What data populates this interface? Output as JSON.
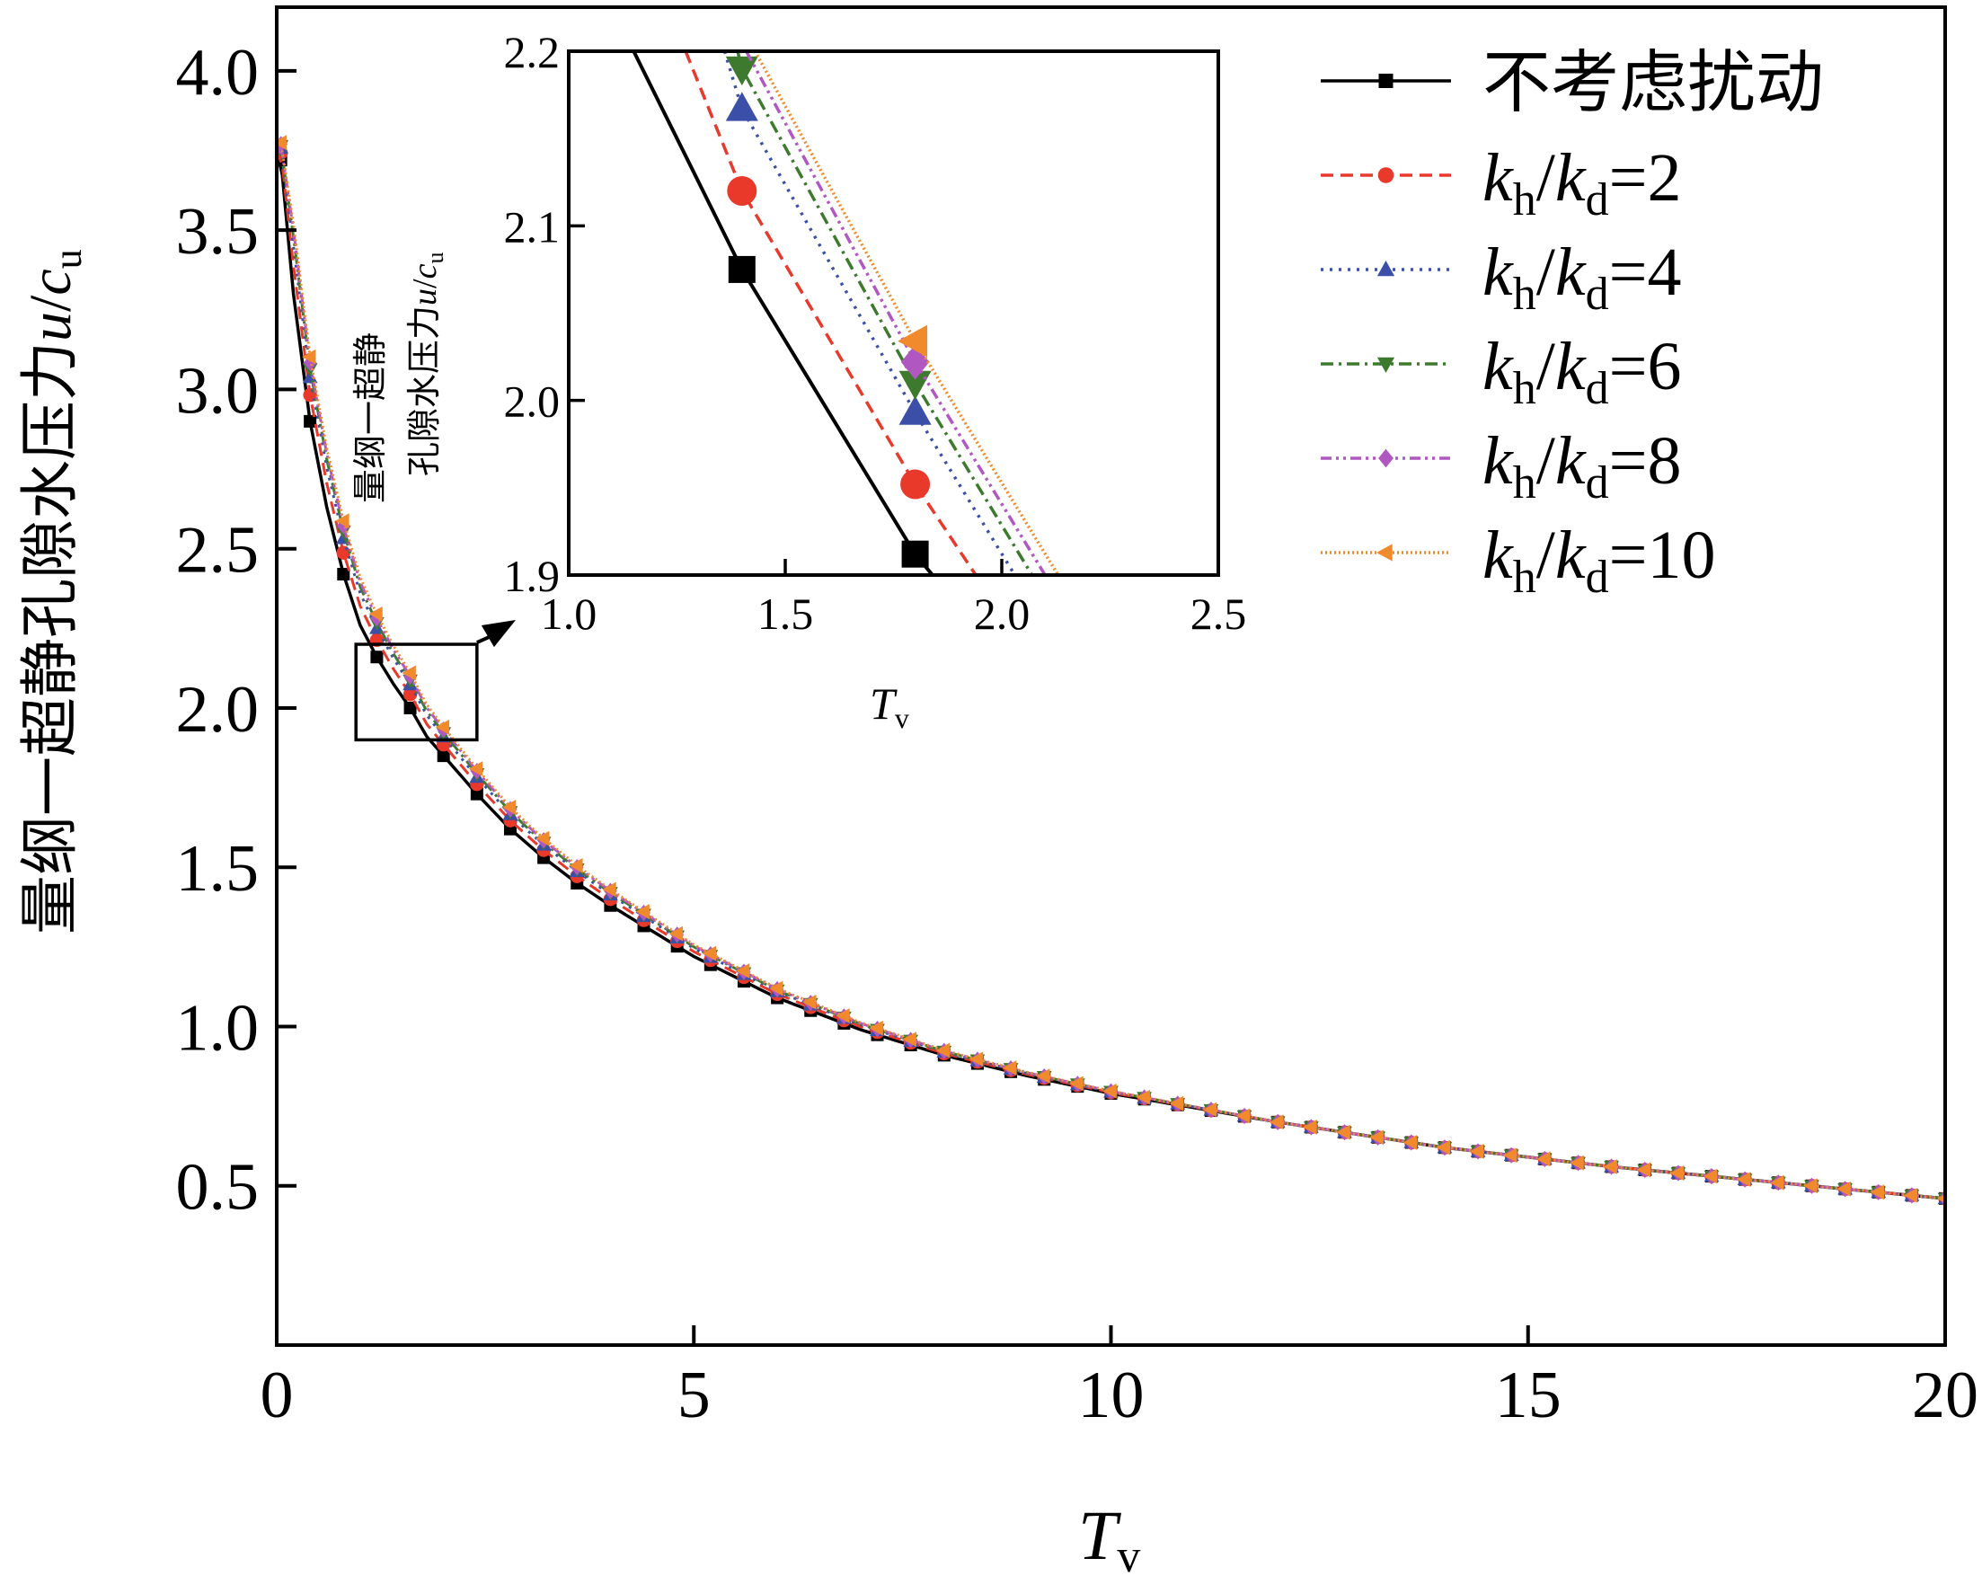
{
  "chart_data": {
    "main": {
      "type": "line",
      "ylabel": "量纲一超静孔隙水压力u/cu",
      "ylabel_parts": {
        "cn": "量纲一超静孔隙水压力",
        "var": "u",
        "slash": "/",
        "c": "c",
        "csub": "u"
      },
      "xlabel": "Tv",
      "xlabel_parts": {
        "var": "T",
        "sub": "v"
      },
      "xlim": [
        0,
        20
      ],
      "ylim": [
        0,
        4.2
      ],
      "xticks": [
        0,
        5,
        10,
        15,
        20
      ],
      "xtick_labels": [
        "0",
        "5",
        "10",
        "15",
        "20"
      ],
      "yticks": [
        0.5,
        1.0,
        1.5,
        2.0,
        2.5,
        3.0,
        3.5,
        4.0
      ],
      "ytick_labels": [
        "0.5",
        "1.0",
        "1.5",
        "2.0",
        "2.5",
        "3.0",
        "3.5",
        "4.0"
      ],
      "grid": false,
      "legend_position": "top-right",
      "zoom_box": {
        "x": [
          0.95,
          2.4
        ],
        "y": [
          1.9,
          2.2
        ]
      },
      "marker_x": [
        0.05,
        0.4,
        0.8,
        1.2,
        1.6,
        2.0,
        2.4,
        2.8,
        3.2,
        3.6,
        4.0,
        4.4,
        4.8,
        5.2,
        5.6,
        6.0,
        6.4,
        6.8,
        7.2,
        7.6,
        8.0,
        8.4,
        8.8,
        9.2,
        9.6,
        10.0,
        10.4,
        10.8,
        11.2,
        11.6,
        12.0,
        12.4,
        12.8,
        13.2,
        13.6,
        14.0,
        14.4,
        14.8,
        15.2,
        15.6,
        16.0,
        16.4,
        16.8,
        17.2,
        17.6,
        18.0,
        18.4,
        18.8,
        19.2,
        19.6,
        20.0
      ],
      "series": [
        {
          "name": "不考虑扰动",
          "label_parts": [
            "不考虑扰动"
          ],
          "color": "#000000",
          "dash": "",
          "marker": "square",
          "offset": [
            0,
            0,
            0,
            0,
            0,
            0,
            0,
            0,
            0
          ]
        },
        {
          "name": "kh/kd=2",
          "label_parts": [
            "k",
            "h",
            "/",
            "k",
            "d",
            "=2"
          ],
          "color": "#e8392b",
          "dash": "14,8",
          "marker": "circle",
          "offset": [
            0,
            0.09,
            0.06,
            0.047,
            0.035,
            0.025,
            0.015,
            0.006,
            0
          ]
        },
        {
          "name": "kh/kd=4",
          "label_parts": [
            "k",
            "h",
            "/",
            "k",
            "d",
            "=4"
          ],
          "color": "#3c4fa8",
          "dash": "3,7",
          "marker": "triangle-up",
          "offset": [
            0,
            0.15,
            0.1,
            0.08,
            0.06,
            0.042,
            0.025,
            0.01,
            0
          ]
        },
        {
          "name": "kh/kd=6",
          "label_parts": [
            "k",
            "h",
            "/",
            "k",
            "d",
            "=6"
          ],
          "color": "#3d7a2e",
          "dash": "14,6,3,6",
          "marker": "triangle-down",
          "offset": [
            0,
            0.18,
            0.12,
            0.095,
            0.072,
            0.05,
            0.03,
            0.012,
            0
          ]
        },
        {
          "name": "kh/kd=8",
          "label_parts": [
            "k",
            "h",
            "/",
            "k",
            "d",
            "=8"
          ],
          "color": "#b157c2",
          "dash": "12,5,3,5,3,5",
          "marker": "diamond",
          "offset": [
            0,
            0.2,
            0.135,
            0.108,
            0.082,
            0.057,
            0.034,
            0.013,
            0
          ]
        },
        {
          "name": "kh/kd=10",
          "label_parts": [
            "k",
            "h",
            "/",
            "k",
            "d",
            "=10"
          ],
          "color": "#f08a2c",
          "dash": "2,3",
          "marker": "triangle-left",
          "offset": [
            0,
            0.22,
            0.15,
            0.12,
            0.09,
            0.063,
            0.037,
            0.015,
            0
          ]
        }
      ],
      "base_curve": {
        "x": [
          0,
          0.05,
          0.2,
          0.4,
          0.6,
          0.8,
          1.0,
          1.2,
          1.4,
          1.6,
          1.8,
          2.0,
          2.4,
          2.8,
          3.2,
          3.6,
          4.0,
          5.0,
          6.0,
          7.0,
          8.0,
          9.0,
          10.0,
          12.0,
          14.0,
          16.0,
          18.0,
          20.0
        ],
        "y": [
          3.75,
          3.72,
          3.3,
          2.9,
          2.63,
          2.42,
          2.26,
          2.16,
          2.075,
          2.0,
          1.91,
          1.85,
          1.73,
          1.62,
          1.53,
          1.45,
          1.38,
          1.22,
          1.09,
          0.99,
          0.91,
          0.845,
          0.79,
          0.7,
          0.62,
          0.56,
          0.51,
          0.46
        ]
      },
      "offset_x": [
        0,
        0.2,
        1.0,
        1.4,
        2.0,
        3.0,
        5.0,
        8.0,
        12.0
      ]
    },
    "inset": {
      "type": "line",
      "ylabel_line1": "量纲一超静",
      "ylabel_line2_parts": {
        "cn": "孔隙水压力",
        "var": "u",
        "slash": "/",
        "c": "c",
        "csub": "u"
      },
      "xlabel_parts": {
        "var": "T",
        "sub": "v"
      },
      "xlim": [
        1.0,
        2.5
      ],
      "ylim": [
        1.9,
        2.2
      ],
      "xticks": [
        1.0,
        1.5,
        2.0,
        2.5
      ],
      "xtick_labels": [
        "1.0",
        "1.5",
        "2.0",
        "2.5"
      ],
      "yticks": [
        1.9,
        2.0,
        2.1,
        2.2
      ],
      "ytick_labels": [
        "1.9",
        "2.0",
        "2.1",
        "2.2"
      ],
      "series": [
        {
          "name": "不考虑扰动",
          "x": [
            1.15,
            1.4,
            1.8,
            1.84
          ],
          "y": [
            2.2,
            2.075,
            1.912,
            1.9
          ],
          "markers": [
            [
              1.4,
              2.075
            ],
            [
              1.8,
              1.912
            ]
          ]
        },
        {
          "name": "kh/kd=2",
          "x": [
            1.27,
            1.4,
            1.8,
            1.94
          ],
          "y": [
            2.2,
            2.12,
            1.952,
            1.9
          ],
          "markers": [
            [
              1.4,
              2.12
            ],
            [
              1.8,
              1.952
            ]
          ]
        },
        {
          "name": "kh/kd=4",
          "x": [
            1.36,
            1.4,
            1.8,
            2.03
          ],
          "y": [
            2.2,
            2.167,
            1.993,
            1.9
          ],
          "markers": [
            [
              1.4,
              2.167
            ],
            [
              1.8,
              1.993
            ]
          ]
        },
        {
          "name": "kh/kd=6",
          "x": [
            1.39,
            1.4,
            1.8,
            2.07
          ],
          "y": [
            2.2,
            2.19,
            2.01,
            1.9
          ],
          "markers": [
            [
              1.4,
              2.19
            ],
            [
              1.8,
              2.01
            ]
          ]
        },
        {
          "name": "kh/kd=8",
          "x": [
            1.41,
            1.8,
            2.1
          ],
          "y": [
            2.2,
            2.022,
            1.9
          ],
          "markers": [
            [
              1.8,
              2.022
            ]
          ]
        },
        {
          "name": "kh/kd=10",
          "x": [
            1.43,
            1.8,
            2.13
          ],
          "y": [
            2.2,
            2.034,
            1.9
          ],
          "markers": [
            [
              1.8,
              2.034
            ]
          ]
        }
      ]
    }
  }
}
